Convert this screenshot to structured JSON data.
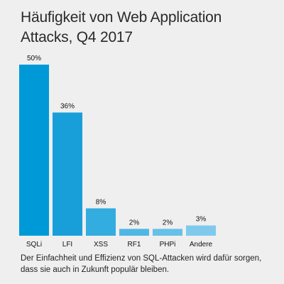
{
  "chart_data": {
    "type": "bar",
    "title": "Häufigkeit von Web Application Attacks, Q4 2017",
    "categories": [
      "SQLi",
      "LFI",
      "XSS",
      "RF1",
      "PHPi",
      "Andere"
    ],
    "values": [
      50,
      36,
      8,
      2,
      2,
      3
    ],
    "value_labels": [
      "50%",
      "36%",
      "8%",
      "2%",
      "2%",
      "3%"
    ],
    "colors": [
      "#0099d8",
      "#189fda",
      "#33ace0",
      "#4fb7e4",
      "#66c0e8",
      "#7fcaec"
    ],
    "ylim": [
      0,
      50
    ],
    "grid": false,
    "legend": "none"
  },
  "caption": "Der Einfachheit und Effizienz von SQL-Attacken wird dafür sorgen, dass sie auch in Zukunft populär bleiben."
}
